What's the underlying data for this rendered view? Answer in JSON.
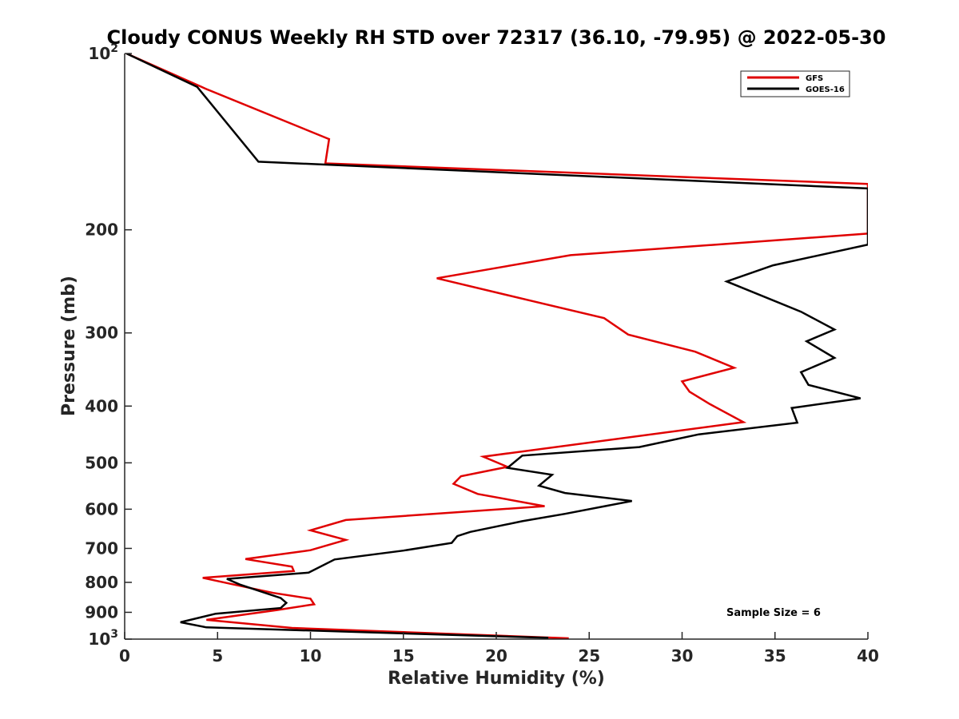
{
  "chart_data": {
    "type": "line",
    "title": "Cloudy CONUS Weekly RH STD over 72317 (36.10, -79.95) @ 2022-05-30",
    "xlabel": "Relative Humidity (%)",
    "ylabel": "Pressure (mb)",
    "xlim": [
      0,
      40
    ],
    "ylim": [
      100,
      1000
    ],
    "y_scale": "log",
    "y_reversed": true,
    "grid": false,
    "legend_position": "top-right",
    "x_ticks": [
      "0",
      "5",
      "10",
      "15",
      "20",
      "25",
      "30",
      "35",
      "40"
    ],
    "y_ticks": [
      {
        "value": 100,
        "label": "10",
        "sup": "2"
      },
      {
        "value": 200,
        "label": "200",
        "sup": ""
      },
      {
        "value": 300,
        "label": "300",
        "sup": ""
      },
      {
        "value": 400,
        "label": "400",
        "sup": ""
      },
      {
        "value": 500,
        "label": "500",
        "sup": ""
      },
      {
        "value": 600,
        "label": "600",
        "sup": ""
      },
      {
        "value": 700,
        "label": "700",
        "sup": ""
      },
      {
        "value": 800,
        "label": "800",
        "sup": ""
      },
      {
        "value": 900,
        "label": "900",
        "sup": ""
      },
      {
        "value": 1000,
        "label": "10",
        "sup": "3"
      }
    ],
    "annotation": "Sample Size = 6",
    "series": [
      {
        "name": "GFS",
        "color": "#e00000",
        "points": [
          [
            0.1,
            100
          ],
          [
            4.4,
            115
          ],
          [
            11.0,
            140
          ],
          [
            10.8,
            154
          ],
          [
            40.0,
            167
          ],
          [
            40.0,
            203
          ],
          [
            24.0,
            221
          ],
          [
            16.8,
            242
          ],
          [
            22.0,
            265
          ],
          [
            25.8,
            283
          ],
          [
            27.1,
            302
          ],
          [
            30.7,
            323
          ],
          [
            32.8,
            344
          ],
          [
            30.0,
            363
          ],
          [
            30.4,
            378
          ],
          [
            31.5,
            397
          ],
          [
            33.3,
            426
          ],
          [
            19.3,
            488
          ],
          [
            20.6,
            508
          ],
          [
            18.1,
            527
          ],
          [
            17.7,
            543
          ],
          [
            19.0,
            565
          ],
          [
            22.6,
            593
          ],
          [
            11.9,
            626
          ],
          [
            10.0,
            652
          ],
          [
            11.9,
            677
          ],
          [
            10.0,
            705
          ],
          [
            6.5,
            730
          ],
          [
            9.0,
            752
          ],
          [
            9.1,
            765
          ],
          [
            4.2,
            786
          ],
          [
            5.8,
            806
          ],
          [
            8.0,
            834
          ],
          [
            10.0,
            853
          ],
          [
            10.2,
            872
          ],
          [
            8.2,
            892
          ],
          [
            4.4,
            927
          ],
          [
            9.0,
            957
          ],
          [
            23.9,
            997
          ]
        ]
      },
      {
        "name": "GOES-16",
        "color": "#000000",
        "points": [
          [
            0.1,
            100
          ],
          [
            3.9,
            114
          ],
          [
            7.2,
            153
          ],
          [
            40.0,
            170
          ],
          [
            40.0,
            212
          ],
          [
            34.9,
            230
          ],
          [
            32.4,
            245
          ],
          [
            36.4,
            276
          ],
          [
            38.2,
            296
          ],
          [
            36.7,
            310
          ],
          [
            38.2,
            331
          ],
          [
            36.4,
            350
          ],
          [
            36.8,
            368
          ],
          [
            39.6,
            388
          ],
          [
            35.9,
            403
          ],
          [
            36.2,
            427
          ],
          [
            30.9,
            447
          ],
          [
            27.7,
            470
          ],
          [
            21.4,
            486
          ],
          [
            20.6,
            510
          ],
          [
            23.0,
            524
          ],
          [
            22.3,
            547
          ],
          [
            23.7,
            563
          ],
          [
            27.3,
            581
          ],
          [
            23.7,
            611
          ],
          [
            21.4,
            629
          ],
          [
            18.6,
            656
          ],
          [
            17.9,
            667
          ],
          [
            17.6,
            685
          ],
          [
            15.0,
            706
          ],
          [
            11.3,
            731
          ],
          [
            9.9,
            770
          ],
          [
            5.5,
            789
          ],
          [
            6.2,
            807
          ],
          [
            8.4,
            851
          ],
          [
            8.7,
            867
          ],
          [
            8.4,
            885
          ],
          [
            4.9,
            905
          ],
          [
            3.0,
            936
          ],
          [
            4.4,
            955
          ],
          [
            22.8,
            995
          ]
        ]
      }
    ]
  }
}
